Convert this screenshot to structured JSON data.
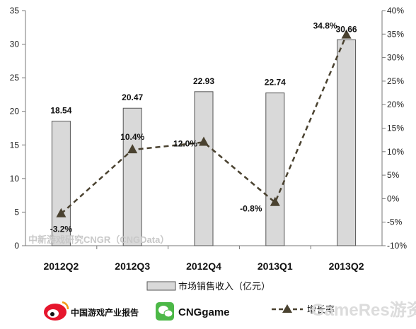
{
  "chart_data": {
    "type": "bar",
    "categories": [
      "2012Q2",
      "2012Q3",
      "2012Q4",
      "2013Q1",
      "2013Q2"
    ],
    "series": [
      {
        "name": "市场销售收入（亿元）",
        "type": "bar",
        "axis": "left",
        "values": [
          18.54,
          20.47,
          22.93,
          22.74,
          30.66
        ],
        "labels": [
          "18.54",
          "20.47",
          "22.93",
          "22.74",
          "30.66"
        ]
      },
      {
        "name": "增长率",
        "type": "line",
        "axis": "right",
        "values": [
          -3.2,
          10.4,
          12.0,
          -0.8,
          34.8
        ],
        "labels": [
          "-3.2%",
          "10.4%",
          "12.0%",
          "-0.8%",
          "34.8%"
        ]
      }
    ],
    "y_left": {
      "min": 0,
      "max": 35,
      "step": 5,
      "ticks": [
        "0",
        "5",
        "10",
        "15",
        "20",
        "25",
        "30",
        "35"
      ]
    },
    "y_right": {
      "min": -10,
      "max": 40,
      "step": 5,
      "ticks": [
        "-10%",
        "-5%",
        "0%",
        "5%",
        "10%",
        "15%",
        "20%",
        "25%",
        "30%",
        "35%",
        "40%"
      ]
    },
    "grid": false,
    "legend_position": "bottom",
    "colors": {
      "bar_fill": "#d9d9d9",
      "bar_stroke": "#555555",
      "line": "#4a4230",
      "marker": "#4a4230"
    }
  },
  "legend": {
    "bar_label": "市场销售收入（亿元）",
    "line_label": "增长率"
  },
  "watermark": "中新游戏研究CNGR（CNGData）",
  "footer": {
    "left_brand": "中国游戏产业报告",
    "middle_brand": "CNGgame",
    "right_watermark": "GameRes游资网",
    "icons": [
      "weibo-icon",
      "wechat-icon"
    ]
  }
}
